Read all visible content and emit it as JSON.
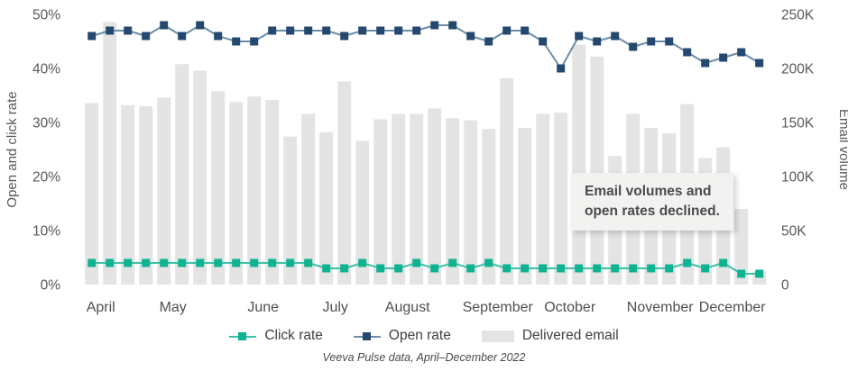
{
  "chart_data": {
    "type": "combo-bar-line",
    "title": "",
    "caption": "Veeva Pulse data, April–December 2022",
    "annotation": {
      "line1": "Email volumes and",
      "line2": "open rates declined."
    },
    "left_axis": {
      "label": "Open and click rate",
      "ticks": [
        "0%",
        "10%",
        "20%",
        "30%",
        "40%",
        "50%"
      ],
      "min": 0,
      "max": 50,
      "unit": "%"
    },
    "right_axis": {
      "label": "Email volume",
      "ticks": [
        "0",
        "50K",
        "100K",
        "150K",
        "200K",
        "250K"
      ],
      "min": 0,
      "max": 250000
    },
    "x_axis": {
      "granularity": "weekly",
      "months": [
        {
          "label": "April",
          "weeks": 4
        },
        {
          "label": "May",
          "weeks": 5
        },
        {
          "label": "June",
          "weeks": 4
        },
        {
          "label": "July",
          "weeks": 4
        },
        {
          "label": "August",
          "weeks": 5
        },
        {
          "label": "September",
          "weeks": 4
        },
        {
          "label": "October",
          "weeks": 5
        },
        {
          "label": "November",
          "weeks": 4
        },
        {
          "label": "December",
          "weeks": 3
        }
      ]
    },
    "series": [
      {
        "name": "Click rate",
        "type": "line",
        "axis": "left",
        "marker_color": "#0fb391",
        "line_color": "#3cc2a5",
        "values": [
          4,
          4,
          4,
          4,
          4,
          4,
          4,
          4,
          4,
          4,
          4,
          4,
          4,
          3,
          3,
          4,
          3,
          3,
          4,
          3,
          4,
          3,
          4,
          3,
          3,
          3,
          3,
          3,
          3,
          3,
          3,
          3,
          3,
          4,
          3,
          4,
          2,
          2
        ]
      },
      {
        "name": "Open rate",
        "type": "line",
        "axis": "left",
        "marker_color": "#24486e",
        "line_color": "#6e8ca8",
        "values": [
          46,
          47,
          47,
          46,
          48,
          46,
          48,
          46,
          45,
          45,
          47,
          47,
          47,
          47,
          46,
          47,
          47,
          47,
          47,
          48,
          48,
          46,
          45,
          47,
          47,
          45,
          40,
          46,
          45,
          46,
          44,
          45,
          45,
          43,
          41,
          42,
          43,
          41
        ]
      },
      {
        "name": "Delivered email",
        "type": "bar",
        "axis": "right",
        "color": "#e4e4e4",
        "values": [
          168000,
          243000,
          166000,
          165000,
          173000,
          204000,
          198000,
          179000,
          169000,
          174000,
          171000,
          137000,
          158000,
          141000,
          188000,
          133000,
          153000,
          158000,
          158000,
          163000,
          154000,
          152000,
          144000,
          191000,
          145000,
          158000,
          159000,
          222000,
          211000,
          119000,
          158000,
          145000,
          140000,
          167000,
          117000,
          127000,
          70000,
          12000
        ]
      }
    ],
    "legend": [
      "Click rate",
      "Open rate",
      "Delivered email"
    ],
    "legend_position": "bottom-center",
    "grid": false
  },
  "ui": {
    "axis_text_color": "#595959",
    "month_text_color": "#4f4f4f",
    "background": "#ffffff"
  }
}
